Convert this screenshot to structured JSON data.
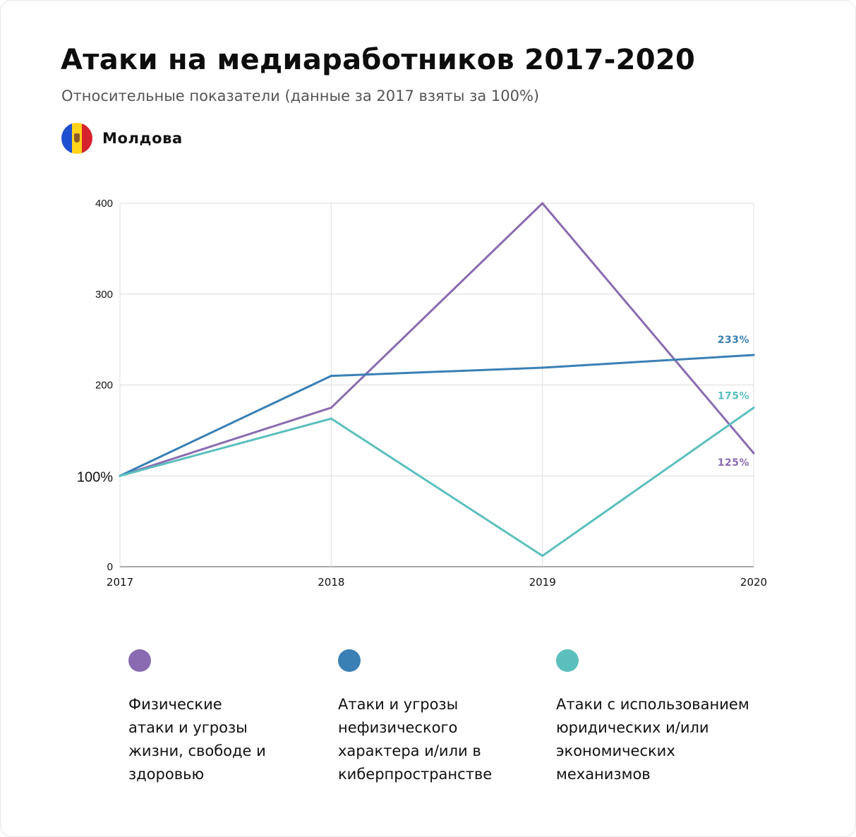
{
  "title": "Атаки на медиаработников 2017-2020",
  "subtitle": "Относительные показатели (данные за 2017 взяты за 100%)",
  "country": {
    "name": "Молдова",
    "flag_icon": "moldova-flag-icon"
  },
  "chart_data": {
    "type": "line",
    "x": [
      "2017",
      "2018",
      "2019",
      "2020"
    ],
    "ylim": [
      0,
      400
    ],
    "yticks": [
      {
        "value": 0,
        "label": "0"
      },
      {
        "value": 100,
        "label": "100%"
      },
      {
        "value": 200,
        "label": "200"
      },
      {
        "value": 300,
        "label": "300"
      },
      {
        "value": 400,
        "label": "400"
      }
    ],
    "grid": true,
    "legend_position": "bottom",
    "series": [
      {
        "name": "Физические атаки и угрозы жизни, свободе и здоровью",
        "color": "#8a6bb1",
        "values": [
          100,
          175,
          400,
          125
        ],
        "end_label": "125%"
      },
      {
        "name": "Атаки и угрозы нефизического характера и/или в киберпространстве",
        "color": "#3a80b5",
        "values": [
          100,
          210,
          219,
          233
        ],
        "end_label": "233%"
      },
      {
        "name": "Атаки с использованием юридических и/или экономических механизмов",
        "color": "#5bbfbe",
        "values": [
          100,
          163,
          12,
          175
        ],
        "end_label": "175%"
      }
    ]
  },
  "legend": [
    {
      "lines": [
        "Физические",
        "атаки и угрозы",
        "жизни, свободе и",
        "здоровью"
      ]
    },
    {
      "lines": [
        "Атаки и угрозы",
        "нефизического",
        "характера и/или в",
        "киберпространстве"
      ]
    },
    {
      "lines": [
        "Атаки с использованием",
        "юридических и/или",
        "экономических",
        "механизмов"
      ]
    }
  ]
}
